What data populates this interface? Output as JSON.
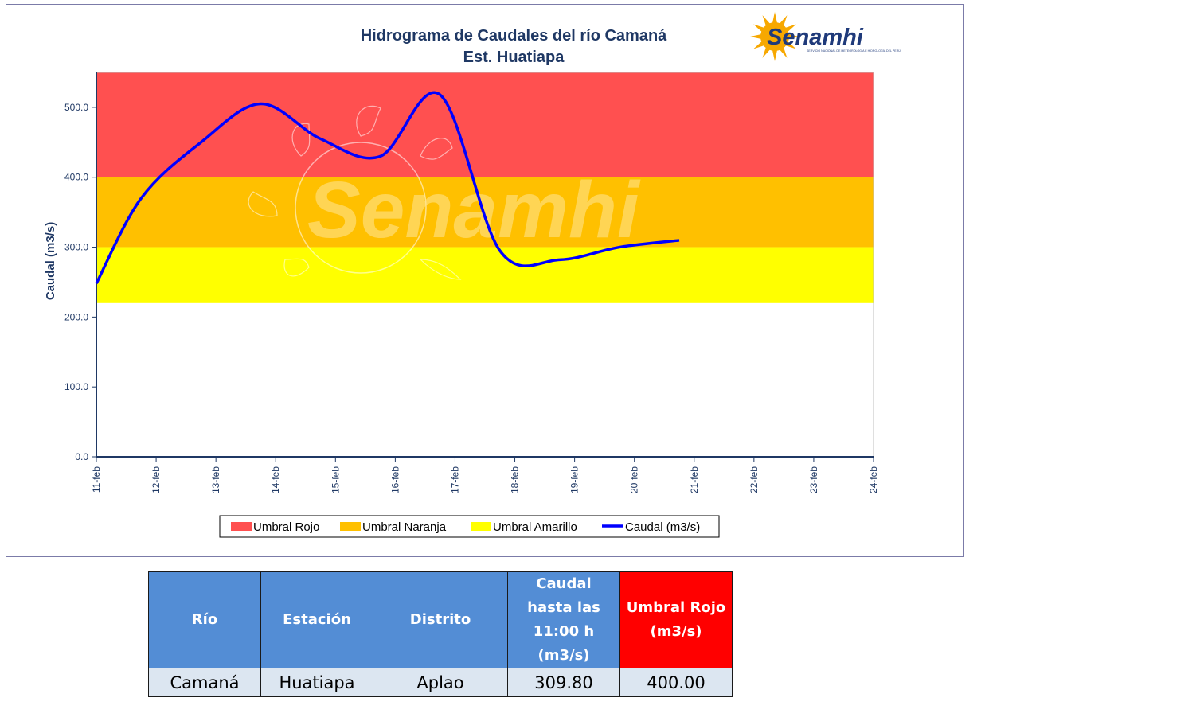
{
  "chart_data": {
    "type": "line",
    "title": "Hidrograma de Caudales del río Camaná",
    "subtitle": "Est. Huatiapa",
    "ylabel": "Caudal (m3/s)",
    "xlabel": "",
    "ylim": [
      0,
      550
    ],
    "yticks": [
      0,
      100,
      200,
      300,
      400,
      500
    ],
    "ytick_labels": [
      "0.0",
      "100.0",
      "200.0",
      "300.0",
      "400.0",
      "500.0"
    ],
    "categories": [
      "11-feb",
      "12-feb",
      "13-feb",
      "14-feb",
      "15-feb",
      "16-feb",
      "17-feb",
      "18-feb",
      "19-feb",
      "20-feb",
      "21-feb",
      "22-feb",
      "23-feb",
      "24-feb"
    ],
    "thresholds": [
      {
        "name": "Umbral Rojo",
        "from": 400,
        "to": 550,
        "color": "#ff5050"
      },
      {
        "name": "Umbral Naranja",
        "from": 300,
        "to": 400,
        "color": "#ffc000"
      },
      {
        "name": "Umbral Amarillo",
        "from": 220,
        "to": 300,
        "color": "#ffff00"
      }
    ],
    "series": [
      {
        "name": "Caudal (m3/s)",
        "color": "#0000ff",
        "points": [
          {
            "x": "11-feb 00h",
            "y": 248
          },
          {
            "x": "11-feb 18h",
            "y": 370
          },
          {
            "x": "12-feb 18h",
            "y": 450
          },
          {
            "x": "13-feb 18h",
            "y": 505
          },
          {
            "x": "14-feb 18h",
            "y": 455
          },
          {
            "x": "15-feb 18h",
            "y": 430
          },
          {
            "x": "16-feb 18h",
            "y": 518
          },
          {
            "x": "17-feb 18h",
            "y": 295
          },
          {
            "x": "18-feb 18h",
            "y": 282
          },
          {
            "x": "19-feb 18h",
            "y": 300
          },
          {
            "x": "20-feb 18h",
            "y": 309.8
          }
        ],
        "x_index": [
          0,
          0.75,
          1.75,
          2.75,
          3.75,
          4.75,
          5.75,
          6.75,
          7.75,
          8.75,
          9.75
        ]
      }
    ],
    "legend": [
      "Umbral Rojo",
      "Umbral Naranja",
      "Umbral Amarillo",
      "Caudal (m3/s)"
    ],
    "legend_position": "bottom",
    "grid": false
  },
  "logo": {
    "text": "Senamhi",
    "subtext": "SERVICIO NACIONAL DE METEOROLOGÍA E HIDROLOGÍA DEL PERÚ"
  },
  "table": {
    "headers": [
      "Río",
      "Estación",
      "Distrito",
      "Caudal hasta las 11:00 h (m3/s)",
      "Umbral Rojo (m3/s)"
    ],
    "row": [
      "Camaná",
      "Huatiapa",
      "Aplao",
      "309.80",
      "400.00"
    ]
  }
}
